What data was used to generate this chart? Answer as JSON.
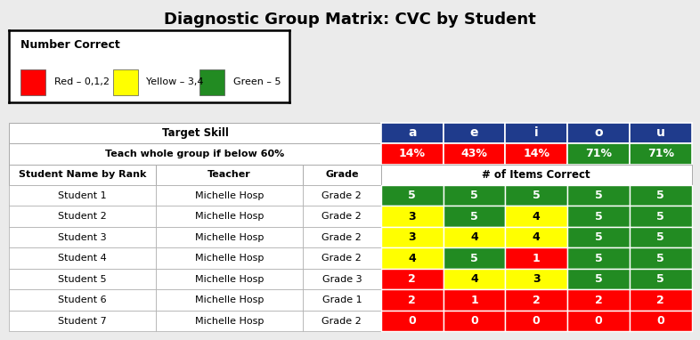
{
  "title": "Diagnostic Group Matrix: CVC by Student",
  "legend_title": "Number Correct",
  "legend_items": [
    {
      "color": "#FF0000",
      "label": "Red – 0,1,2"
    },
    {
      "color": "#FFFF00",
      "label": "Yellow – 3,4"
    },
    {
      "color": "#228B22",
      "label": "Green – 5"
    }
  ],
  "skill_labels": [
    "a",
    "e",
    "i",
    "o",
    "u"
  ],
  "skill_header_color": "#1F3B8C",
  "pct_labels": [
    "14%",
    "43%",
    "14%",
    "71%",
    "71%"
  ],
  "pct_colors": [
    "#FF0000",
    "#FF0000",
    "#FF0000",
    "#228B22",
    "#228B22"
  ],
  "students": [
    {
      "name": "Student 1",
      "teacher": "Michelle Hosp",
      "grade": "Grade 2",
      "scores": [
        5,
        5,
        5,
        5,
        5
      ]
    },
    {
      "name": "Student 2",
      "teacher": "Michelle Hosp",
      "grade": "Grade 2",
      "scores": [
        3,
        5,
        4,
        5,
        5
      ]
    },
    {
      "name": "Student 3",
      "teacher": "Michelle Hosp",
      "grade": "Grade 2",
      "scores": [
        3,
        4,
        4,
        5,
        5
      ]
    },
    {
      "name": "Student 4",
      "teacher": "Michelle Hosp",
      "grade": "Grade 2",
      "scores": [
        4,
        5,
        1,
        5,
        5
      ]
    },
    {
      "name": "Student 5",
      "teacher": "Michelle Hosp",
      "grade": "Grade 3",
      "scores": [
        2,
        4,
        3,
        5,
        5
      ]
    },
    {
      "name": "Student 6",
      "teacher": "Michelle Hosp",
      "grade": "Grade 1",
      "scores": [
        2,
        1,
        2,
        2,
        2
      ]
    },
    {
      "name": "Student 7",
      "teacher": "Michelle Hosp",
      "grade": "Grade 2",
      "scores": [
        0,
        0,
        0,
        0,
        0
      ]
    }
  ],
  "score_color_map": {
    "0": "#FF0000",
    "1": "#FF0000",
    "2": "#FF0000",
    "3": "#FFFF00",
    "4": "#FFFF00",
    "5": "#228B22"
  },
  "score_text_color_map": {
    "0": "white",
    "1": "white",
    "2": "white",
    "3": "black",
    "4": "black",
    "5": "white"
  },
  "bg_color": "#EBEBEB",
  "border_color": "#AAAAAA"
}
